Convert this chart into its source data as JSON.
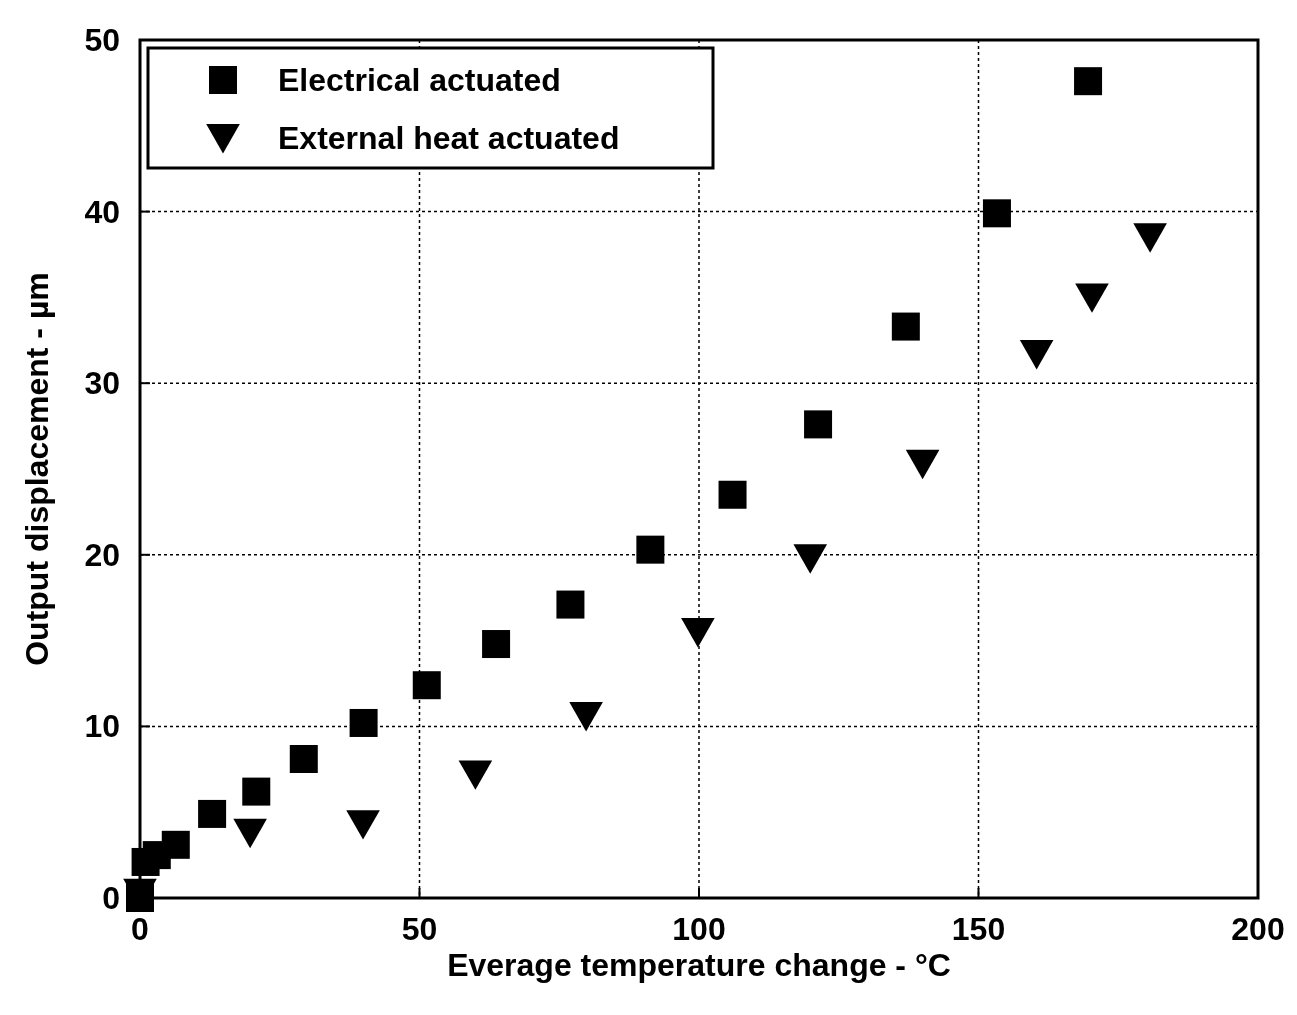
{
  "chart_data": {
    "type": "scatter",
    "xlabel": "Everage temperature change - °C",
    "ylabel": "Output displacement - µm",
    "xlim": [
      0,
      200
    ],
    "ylim": [
      0,
      50
    ],
    "xticks": [
      0,
      50,
      100,
      150,
      200
    ],
    "yticks": [
      0,
      10,
      20,
      30,
      40,
      50
    ],
    "grid": true,
    "legend": "top left",
    "series": [
      {
        "name": "Electrical actuated",
        "color": "#000000",
        "marker": "square",
        "x": [
          0,
          1,
          3,
          6.4,
          12.9,
          20.8,
          29.3,
          40,
          51.3,
          63.7,
          77,
          91.3,
          106,
          121.3,
          137,
          153.3,
          169.6
        ],
        "values": [
          0,
          2.1,
          2.5,
          3.1,
          4.9,
          6.2,
          8.1,
          10.2,
          12.4,
          14.8,
          17.1,
          20.3,
          23.5,
          27.6,
          33.3,
          39.9,
          47.6
        ]
      },
      {
        "name": "External heat actuated",
        "color": "#000000",
        "marker": "triangle",
        "x": [
          0,
          19.7,
          39.9,
          60,
          79.8,
          99.8,
          119.9,
          140,
          160.4,
          170.3,
          180.7
        ],
        "values": [
          0.3,
          3.8,
          4.3,
          7.2,
          10.6,
          15.5,
          19.8,
          25.3,
          31.7,
          35,
          38.5
        ]
      }
    ]
  }
}
